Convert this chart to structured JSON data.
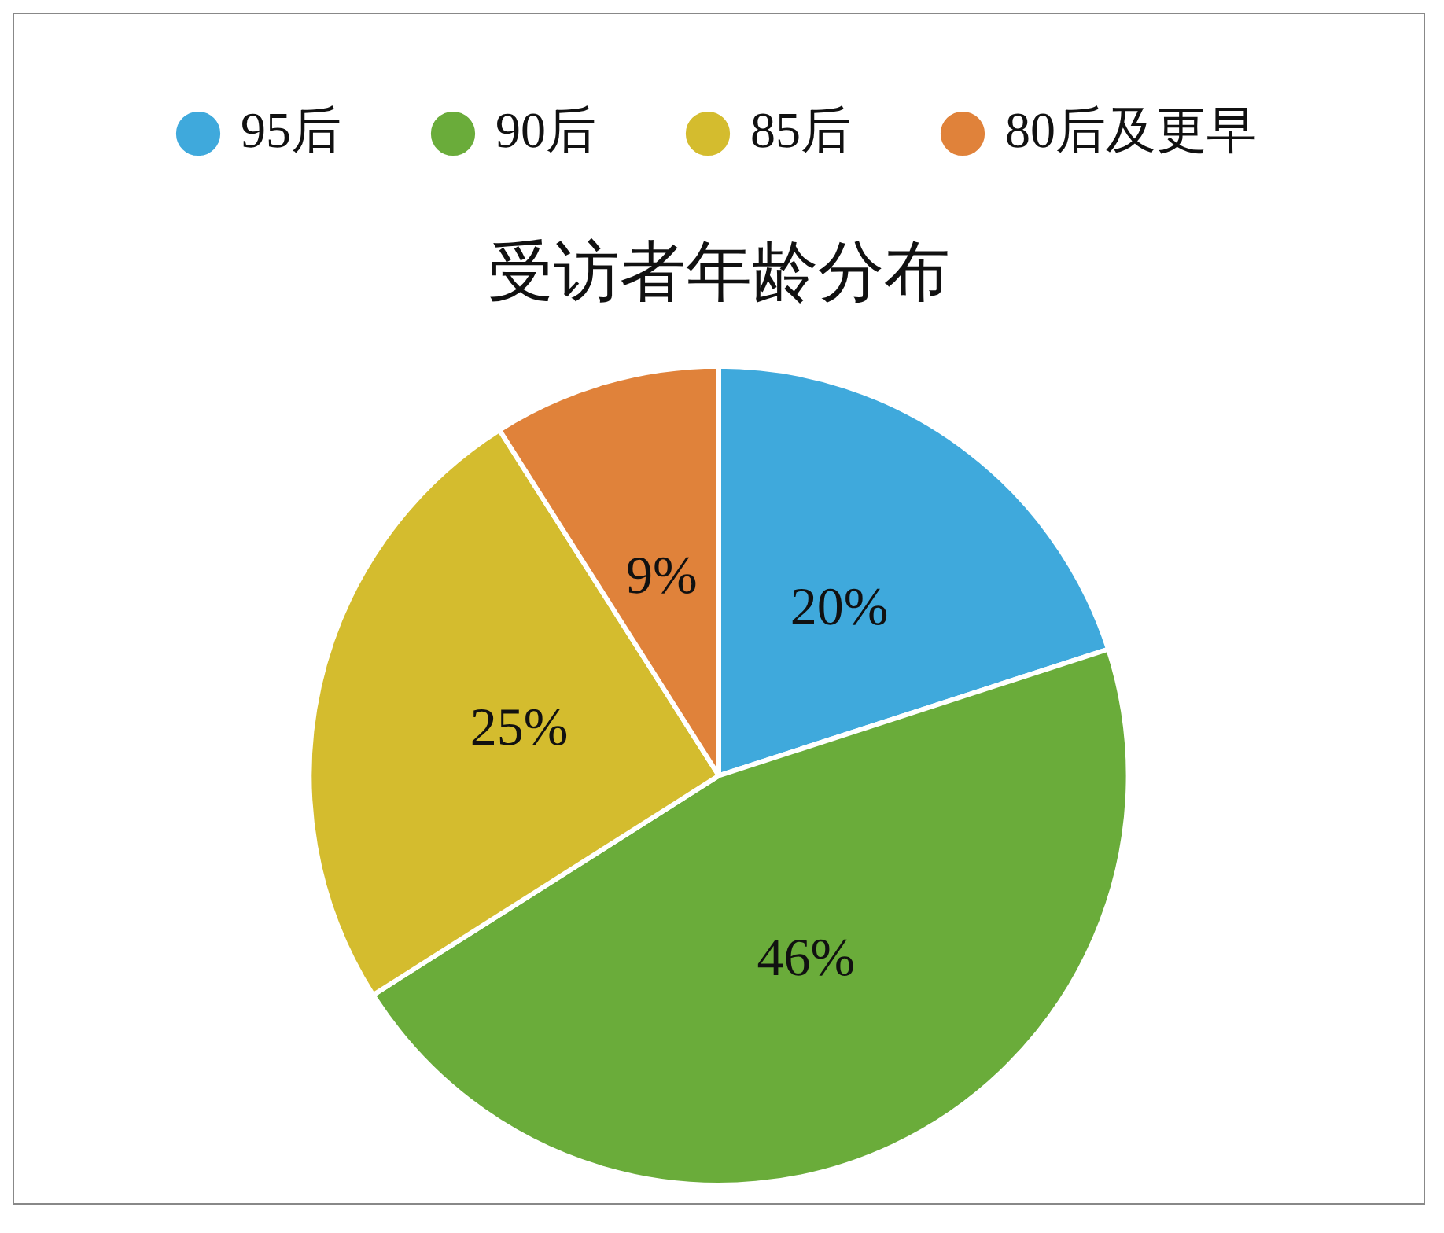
{
  "chart_data": {
    "type": "pie",
    "title": "受访者年龄分布",
    "categories": [
      "95后",
      "90后",
      "85后",
      "80后及更早"
    ],
    "values": [
      20,
      46,
      25,
      9
    ],
    "colors": [
      "#3fa9dc",
      "#6aac3a",
      "#d4bc2e",
      "#e0823a"
    ],
    "value_labels": [
      "20%",
      "46%",
      "25%",
      "9%"
    ],
    "legend": "top"
  }
}
